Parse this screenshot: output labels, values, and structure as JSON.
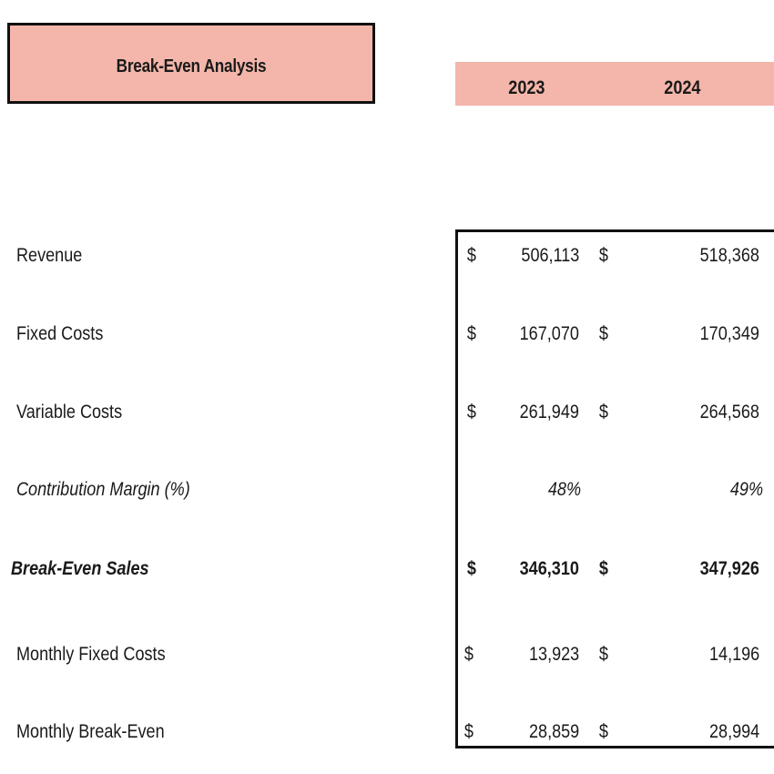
{
  "title": "Break-Even Analysis",
  "years": [
    "2023",
    "2024"
  ],
  "rows": [
    {
      "label": "Revenue",
      "cur1": "$",
      "val1": "506,113",
      "cur2": "$",
      "val2": "518,368"
    },
    {
      "label": "Fixed Costs",
      "cur1": "$",
      "val1": "167,070",
      "cur2": "$",
      "val2": "170,349"
    },
    {
      "label": "Variable Costs",
      "cur1": "$",
      "val1": "261,949",
      "cur2": "$",
      "val2": "264,568"
    },
    {
      "label": "Contribution Margin (%)",
      "cur1": "",
      "val1": "48%",
      "cur2": "",
      "val2": "49%"
    },
    {
      "label": "Break-Even Sales",
      "cur1": "$",
      "val1": "346,310",
      "cur2": "$",
      "val2": "347,926"
    },
    {
      "label": "Monthly Fixed Costs",
      "cur1": "$",
      "val1": "13,923",
      "cur2": "$",
      "val2": "14,196"
    },
    {
      "label": "Monthly Break-Even",
      "cur1": "$",
      "val1": "28,859",
      "cur2": "$",
      "val2": "28,994"
    }
  ],
  "colors": {
    "header_fill": "#f4b6aa",
    "border": "#111111"
  }
}
